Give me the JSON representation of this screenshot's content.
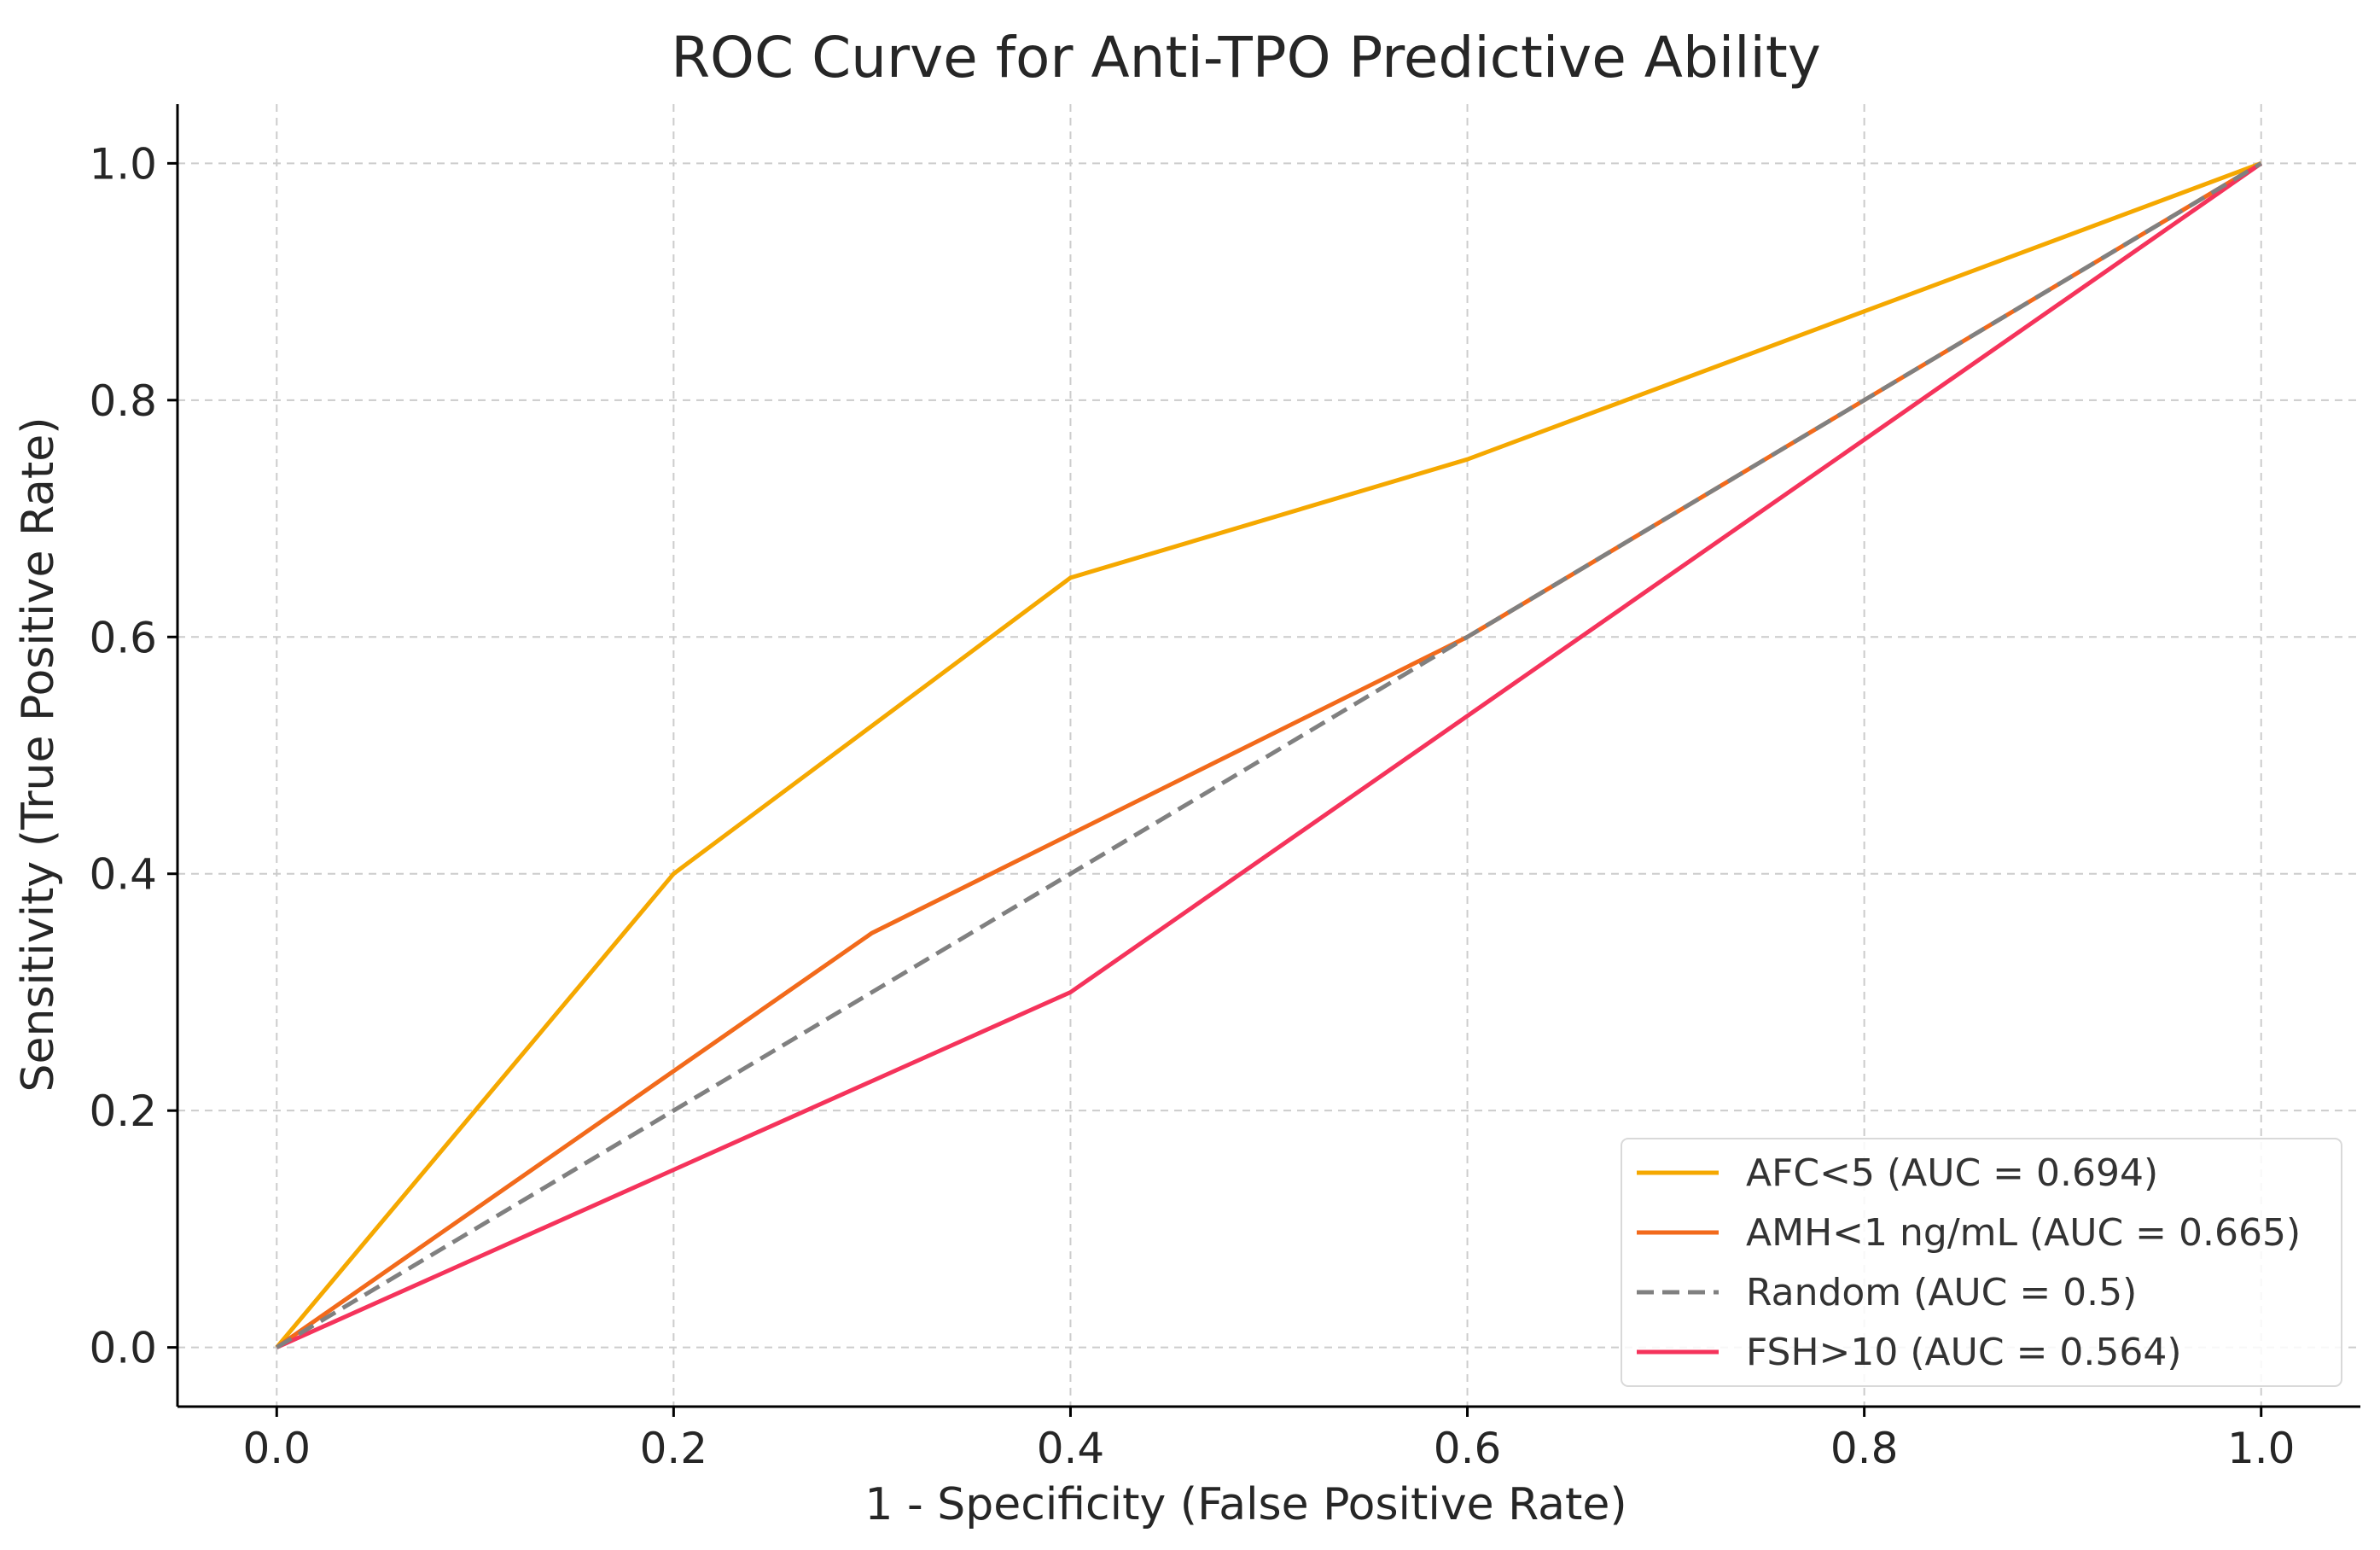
{
  "chart_data": {
    "type": "line",
    "title": "ROC Curve for Anti-TPO Predictive Ability",
    "xlabel": "1 - Specificity (False Positive Rate)",
    "ylabel": "Sensitivity (True Positive Rate)",
    "xlim": [
      -0.05,
      1.05
    ],
    "ylim": [
      -0.05,
      1.05
    ],
    "x_ticks": [
      "0.0",
      "0.2",
      "0.4",
      "0.6",
      "0.8",
      "1.0"
    ],
    "y_ticks": [
      "0.0",
      "0.2",
      "0.4",
      "0.6",
      "0.8",
      "1.0"
    ],
    "grid": true,
    "legend_position": "bottom-right",
    "series": [
      {
        "name": "AFC<5 (AUC = 0.694)",
        "color": "#f5a800",
        "dashed": false,
        "x": [
          0.0,
          0.2,
          0.4,
          0.6,
          1.0
        ],
        "y": [
          0.0,
          0.4,
          0.65,
          0.75,
          1.0
        ]
      },
      {
        "name": "AMH<1 ng/mL (AUC = 0.665)",
        "color": "#f26a1b",
        "dashed": false,
        "x": [
          0.0,
          0.3,
          0.6,
          1.0
        ],
        "y": [
          0.0,
          0.35,
          0.6,
          1.0
        ]
      },
      {
        "name": "Random (AUC = 0.5)",
        "color": "#808080",
        "dashed": true,
        "x": [
          0.0,
          1.0
        ],
        "y": [
          0.0,
          1.0
        ]
      },
      {
        "name": "FSH>10 (AUC = 0.564)",
        "color": "#f5335b",
        "dashed": false,
        "x": [
          0.0,
          0.4,
          1.0
        ],
        "y": [
          0.0,
          0.3,
          1.0
        ]
      }
    ]
  }
}
